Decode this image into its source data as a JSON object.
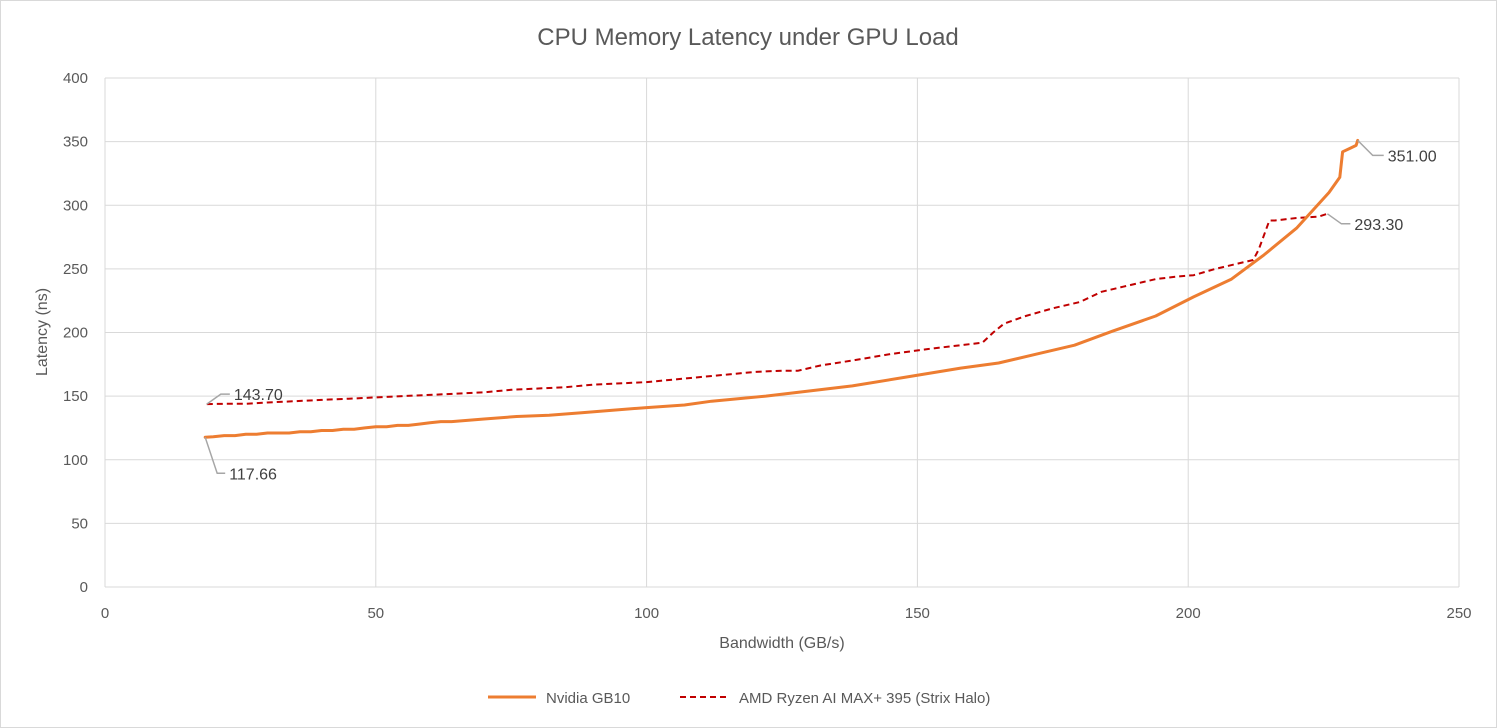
{
  "chart_data": {
    "type": "line",
    "title": "CPU Memory Latency under GPU Load",
    "xlabel": "Bandwidth (GB/s)",
    "ylabel": "Latency (ns)",
    "xlim": [
      0,
      250
    ],
    "ylim": [
      0,
      400
    ],
    "xticks": [
      "0",
      "50",
      "100",
      "150",
      "200",
      "250"
    ],
    "yticks": [
      "0",
      "50",
      "100",
      "150",
      "200",
      "250",
      "300",
      "350",
      "400"
    ],
    "grid": true,
    "legend_position": "bottom",
    "series": [
      {
        "name": "Nvidia GB10",
        "color": "#ED7D31",
        "style": "solid",
        "x": [
          18.5,
          20,
          22,
          24,
          26,
          28,
          30,
          32,
          34,
          36,
          38,
          40,
          42,
          44,
          46,
          48,
          50,
          52,
          54,
          56,
          58,
          60,
          62,
          64,
          70,
          76,
          82,
          88,
          94,
          100,
          107,
          112,
          122,
          130,
          138,
          148,
          158,
          165,
          172,
          179,
          186,
          194,
          201,
          208,
          214,
          220,
          226,
          228,
          228.5,
          230,
          231,
          231.3
        ],
        "y": [
          117.66,
          118,
          119,
          119,
          120,
          120,
          121,
          121,
          121,
          122,
          122,
          123,
          123,
          124,
          124,
          125,
          126,
          126,
          127,
          127,
          128,
          129,
          130,
          130,
          132,
          134,
          135,
          137,
          139,
          141,
          143,
          146,
          150,
          154,
          158,
          165,
          172,
          176,
          183,
          190,
          201,
          213,
          228,
          242,
          261,
          282,
          310,
          322,
          342,
          345,
          347,
          351.0
        ]
      },
      {
        "name": "AMD Ryzen AI MAX+ 395 (Strix Halo)",
        "color": "#C00000",
        "style": "dashed",
        "x": [
          18.8,
          22,
          26,
          30,
          35,
          40,
          45,
          50,
          55,
          60,
          65,
          70,
          75,
          80,
          85,
          90,
          95,
          100,
          105,
          110,
          115,
          120,
          125,
          128,
          132,
          138,
          145,
          152,
          158,
          162,
          164,
          166,
          170,
          175,
          180,
          184,
          188,
          194,
          198,
          201,
          205,
          209,
          212,
          213,
          215,
          216,
          220,
          224,
          225.7
        ],
        "y": [
          143.7,
          144,
          144,
          145,
          146,
          147,
          148,
          149,
          150,
          151,
          152,
          153,
          155,
          156,
          157,
          159,
          160,
          161,
          163,
          165,
          167,
          169,
          170,
          170,
          174,
          178,
          183,
          187,
          190,
          192,
          200,
          207,
          213,
          219,
          224,
          232,
          236,
          242,
          244,
          245,
          250,
          254,
          257,
          265,
          288,
          288,
          290,
          291,
          293.3
        ]
      }
    ],
    "annotations": [
      {
        "text": "117.66",
        "series": "Nvidia GB10",
        "x": 18.5,
        "y": 117.66
      },
      {
        "text": "351.00",
        "series": "Nvidia GB10",
        "x": 231.3,
        "y": 351.0
      },
      {
        "text": "143.70",
        "series": "AMD Ryzen AI MAX+ 395 (Strix Halo)",
        "x": 18.8,
        "y": 143.7
      },
      {
        "text": "293.30",
        "series": "AMD Ryzen AI MAX+ 395 (Strix Halo)",
        "x": 225.7,
        "y": 293.3
      }
    ]
  }
}
